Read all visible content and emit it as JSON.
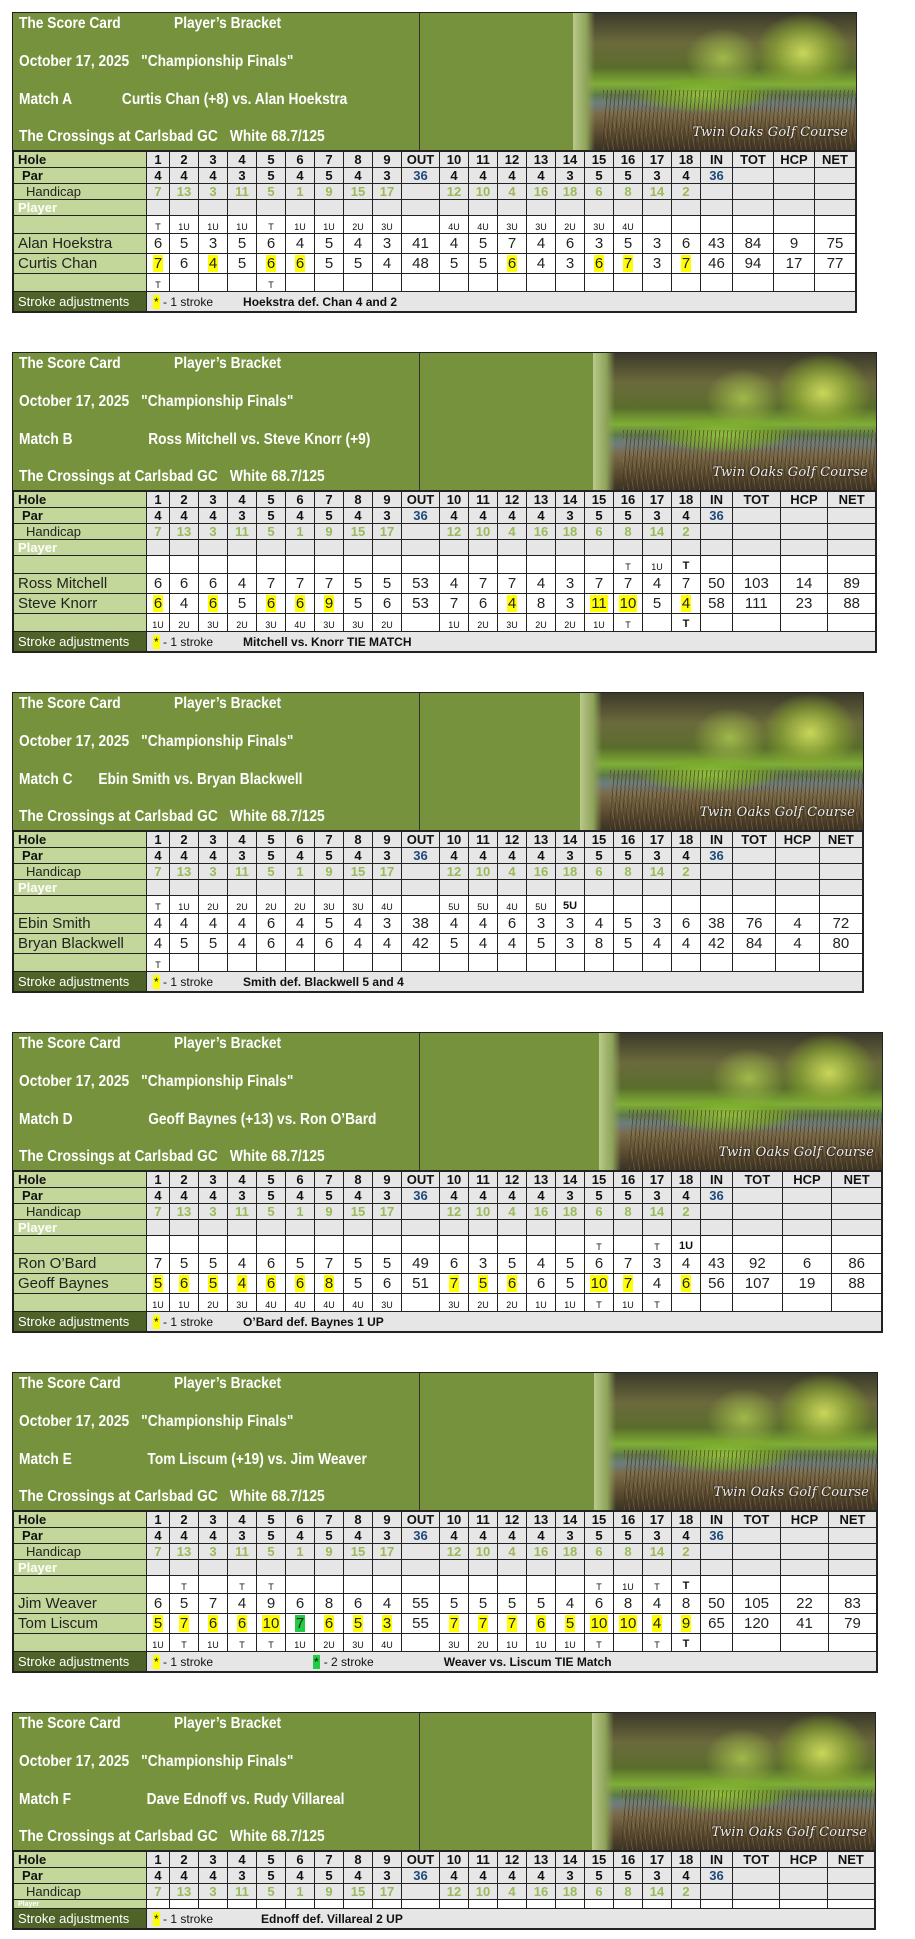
{
  "common": {
    "title": "The Score Card",
    "subtitle": "Player’s Bracket",
    "date": "October 17, 2025",
    "event": "\"Championship Finals\"",
    "course": "The Crossings at Carlsbad GC",
    "tees": "White  68.7/125",
    "logo_text": "Twin Oaks Golf Course",
    "labels": {
      "hole": "Hole",
      "par": "Par",
      "handicap": "Handicap",
      "player": "Player",
      "stroke_adjustments": "Stroke  adjustments"
    },
    "columns": [
      "1",
      "2",
      "3",
      "4",
      "5",
      "6",
      "7",
      "8",
      "9",
      "OUT",
      "10",
      "11",
      "12",
      "13",
      "14",
      "15",
      "16",
      "17",
      "18",
      "IN",
      "TOT",
      "HCP",
      "NET"
    ],
    "par": [
      "4",
      "4",
      "4",
      "3",
      "5",
      "4",
      "5",
      "4",
      "3",
      "36",
      "4",
      "4",
      "4",
      "4",
      "3",
      "5",
      "5",
      "3",
      "4",
      "36",
      "",
      "",
      ""
    ],
    "handicap": [
      "7",
      "13",
      "3",
      "11",
      "5",
      "1",
      "9",
      "15",
      "17",
      "",
      "12",
      "10",
      "4",
      "16",
      "18",
      "6",
      "8",
      "14",
      "2",
      "",
      "",
      "",
      ""
    ],
    "one_stroke": "- 1 stroke",
    "two_stroke": "- 2 stroke",
    "star": "*"
  },
  "colors": {
    "header_green": "#76923c",
    "label_green": "#c4d79b",
    "dark_green": "#4f6228",
    "handicap_green": "#9bbb59",
    "par_total_blue": "#1f497d",
    "one_stroke_highlight": "#ffff00",
    "two_stroke_highlight": "#22cc44",
    "grid_gray": "#e6e6e6"
  },
  "matches": [
    {
      "match": "Match A",
      "pairing": "Curtis Chan (+8) vs. Alan Hoekstra",
      "status_top": [
        "T",
        "1U",
        "1U",
        "1U",
        "T",
        "1U",
        "1U",
        "2U",
        "3U",
        "",
        "4U",
        "4U",
        "3U",
        "3U",
        "2U",
        "3U",
        "4U",
        "",
        "",
        "",
        "",
        "",
        ""
      ],
      "status_top_bold": [],
      "players": [
        {
          "name": "Alan Hoekstra",
          "scores": [
            "6",
            "5",
            "3",
            "5",
            "6",
            "4",
            "5",
            "4",
            "3",
            "41",
            "4",
            "5",
            "7",
            "4",
            "6",
            "3",
            "5",
            "3",
            "6",
            "43",
            "84",
            "9",
            "75"
          ],
          "stroke_holes": [],
          "two_stroke_holes": []
        },
        {
          "name": "Curtis Chan",
          "scores": [
            "7",
            "6",
            "4",
            "5",
            "6",
            "6",
            "5",
            "5",
            "4",
            "48",
            "5",
            "5",
            "6",
            "4",
            "3",
            "6",
            "7",
            "3",
            "7",
            "46",
            "94",
            "17",
            "77"
          ],
          "stroke_holes": [
            1,
            3,
            5,
            6,
            12,
            15,
            16,
            18
          ],
          "two_stroke_holes": []
        }
      ],
      "status_bottom": [
        "T",
        "",
        "",
        "",
        "T",
        "",
        "",
        "",
        "",
        "",
        "",
        "",
        "",
        "",
        "",
        "",
        "",
        "",
        "",
        "",
        "",
        "",
        ""
      ],
      "status_bottom_bold": [],
      "two_stroke_legend": false,
      "result": "Hoekstra def. Chan 4 and 2"
    },
    {
      "match": "Match B",
      "pairing": "Ross Mitchell vs. Steve Knorr (+9)",
      "status_top": [
        "",
        "",
        "",
        "",
        "",
        "",
        "",
        "",
        "",
        "",
        "",
        "",
        "",
        "",
        "",
        "",
        "T",
        "1U",
        "T",
        "",
        "",
        "",
        ""
      ],
      "status_top_bold": [
        18
      ],
      "players": [
        {
          "name": "Ross Mitchell",
          "scores": [
            "6",
            "6",
            "6",
            "4",
            "7",
            "7",
            "7",
            "5",
            "5",
            "53",
            "4",
            "7",
            "7",
            "4",
            "3",
            "7",
            "7",
            "4",
            "7",
            "50",
            "103",
            "14",
            "89"
          ],
          "stroke_holes": [],
          "two_stroke_holes": []
        },
        {
          "name": "Steve Knorr",
          "scores": [
            "6",
            "4",
            "6",
            "5",
            "6",
            "6",
            "9",
            "5",
            "6",
            "53",
            "7",
            "6",
            "4",
            "8",
            "3",
            "11",
            "10",
            "5",
            "4",
            "58",
            "111",
            "23",
            "88"
          ],
          "stroke_holes": [
            1,
            3,
            5,
            6,
            7,
            12,
            15,
            16,
            18
          ],
          "two_stroke_holes": []
        }
      ],
      "status_bottom": [
        "1U",
        "2U",
        "3U",
        "2U",
        "3U",
        "4U",
        "3U",
        "3U",
        "2U",
        "",
        "1U",
        "2U",
        "3U",
        "2U",
        "2U",
        "1U",
        "T",
        "",
        "T",
        "",
        "",
        "",
        ""
      ],
      "status_bottom_bold": [
        18
      ],
      "two_stroke_legend": false,
      "result": "Mitchell vs. Knorr  TIE MATCH"
    },
    {
      "match": "Match C",
      "pairing": "Ebin Smith vs. Bryan Blackwell",
      "status_top": [
        "T",
        "1U",
        "2U",
        "2U",
        "2U",
        "2U",
        "3U",
        "3U",
        "4U",
        "",
        "5U",
        "5U",
        "4U",
        "5U",
        "5U",
        "",
        "",
        "",
        "",
        "",
        "",
        "",
        ""
      ],
      "status_top_bold": [
        14
      ],
      "players": [
        {
          "name": "Ebin Smith",
          "scores": [
            "4",
            "4",
            "4",
            "4",
            "6",
            "4",
            "5",
            "4",
            "3",
            "38",
            "4",
            "4",
            "6",
            "3",
            "3",
            "4",
            "5",
            "3",
            "6",
            "38",
            "76",
            "4",
            "72"
          ],
          "stroke_holes": [],
          "two_stroke_holes": []
        },
        {
          "name": "Bryan Blackwell",
          "scores": [
            "4",
            "5",
            "5",
            "4",
            "6",
            "4",
            "6",
            "4",
            "4",
            "42",
            "5",
            "4",
            "4",
            "5",
            "3",
            "8",
            "5",
            "4",
            "4",
            "42",
            "84",
            "4",
            "80"
          ],
          "stroke_holes": [],
          "two_stroke_holes": []
        }
      ],
      "status_bottom": [
        "T",
        "",
        "",
        "",
        "",
        "",
        "",
        "",
        "",
        "",
        "",
        "",
        "",
        "",
        "",
        "",
        "",
        "",
        "",
        "",
        "",
        "",
        ""
      ],
      "status_bottom_bold": [],
      "two_stroke_legend": false,
      "result": "Smith def. Blackwell  5 and 4"
    },
    {
      "match": "Match D",
      "pairing": "Geoff Baynes (+13) vs. Ron O’Bard",
      "status_top": [
        "",
        "",
        "",
        "",
        "",
        "",
        "",
        "",
        "",
        "",
        "",
        "",
        "",
        "",
        "",
        "T",
        "",
        "T",
        "1U",
        "",
        "",
        "",
        ""
      ],
      "status_top_bold": [
        18
      ],
      "players": [
        {
          "name": "Ron O’Bard",
          "scores": [
            "7",
            "5",
            "5",
            "4",
            "6",
            "5",
            "7",
            "5",
            "5",
            "49",
            "6",
            "3",
            "5",
            "4",
            "5",
            "6",
            "7",
            "3",
            "4",
            "43",
            "92",
            "6",
            "86"
          ],
          "stroke_holes": [],
          "two_stroke_holes": []
        },
        {
          "name": "Geoff Baynes",
          "scores": [
            "5",
            "6",
            "5",
            "4",
            "6",
            "6",
            "8",
            "5",
            "6",
            "51",
            "7",
            "5",
            "6",
            "6",
            "5",
            "10",
            "7",
            "4",
            "6",
            "56",
            "107",
            "19",
            "88"
          ],
          "stroke_holes": [
            1,
            2,
            3,
            4,
            5,
            6,
            7,
            10,
            11,
            12,
            15,
            16,
            18
          ],
          "two_stroke_holes": []
        }
      ],
      "status_bottom": [
        "1U",
        "1U",
        "2U",
        "3U",
        "4U",
        "4U",
        "4U",
        "4U",
        "3U",
        "",
        "3U",
        "2U",
        "2U",
        "1U",
        "1U",
        "T",
        "1U",
        "T",
        "",
        "",
        "",
        "",
        ""
      ],
      "status_bottom_bold": [],
      "two_stroke_legend": false,
      "result": "O’Bard def. Baynes  1 UP"
    },
    {
      "match": "Match E",
      "pairing": "Tom Liscum (+19) vs. Jim Weaver",
      "status_top": [
        "",
        "T",
        "",
        "T",
        "T",
        "",
        "",
        "",
        "",
        "",
        "",
        "",
        "",
        "",
        "",
        "T",
        "1U",
        "T",
        "T",
        "",
        "",
        "",
        ""
      ],
      "status_top_bold": [
        18
      ],
      "players": [
        {
          "name": "Jim Weaver",
          "scores": [
            "6",
            "5",
            "7",
            "4",
            "9",
            "6",
            "8",
            "6",
            "4",
            "55",
            "5",
            "5",
            "5",
            "5",
            "4",
            "6",
            "8",
            "4",
            "8",
            "50",
            "105",
            "22",
            "83"
          ],
          "stroke_holes": [],
          "two_stroke_holes": []
        },
        {
          "name": "Tom Liscum",
          "scores": [
            "5",
            "7",
            "6",
            "6",
            "10",
            "7",
            "6",
            "5",
            "3",
            "55",
            "7",
            "7",
            "7",
            "6",
            "5",
            "10",
            "10",
            "4",
            "9",
            "65",
            "120",
            "41",
            "79"
          ],
          "stroke_holes": [
            1,
            2,
            3,
            4,
            5,
            7,
            8,
            9,
            10,
            11,
            12,
            13,
            14,
            15,
            16,
            17,
            18
          ],
          "two_stroke_holes": [
            6
          ]
        }
      ],
      "status_bottom": [
        "1U",
        "T",
        "1U",
        "T",
        "T",
        "1U",
        "2U",
        "3U",
        "4U",
        "",
        "3U",
        "2U",
        "1U",
        "1U",
        "1U",
        "T",
        "",
        "T",
        "T",
        "",
        "",
        "",
        ""
      ],
      "status_bottom_bold": [
        18
      ],
      "two_stroke_legend": true,
      "result": "Weaver vs. Liscum  TIE Match"
    },
    {
      "match": "Match F",
      "pairing": "Dave Ednoff vs. Rudy Villareal",
      "truncated": true,
      "two_stroke_legend": false,
      "result": "Ednoff  def. Villareal  2 UP"
    }
  ]
}
